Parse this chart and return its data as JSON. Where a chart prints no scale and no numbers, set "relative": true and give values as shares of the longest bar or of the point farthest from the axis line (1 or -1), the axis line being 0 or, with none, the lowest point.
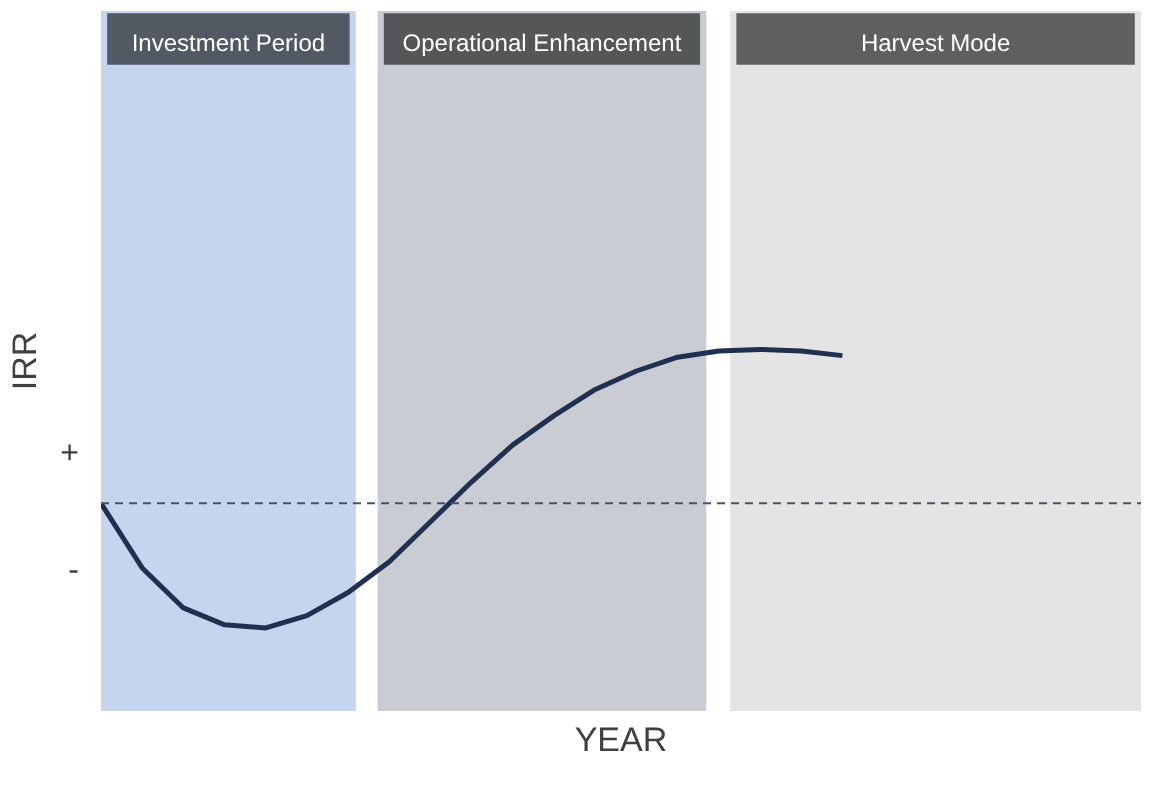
{
  "chart_data": {
    "type": "line",
    "relative": true,
    "xlabel": "YEAR",
    "ylabel": "IRR",
    "categories": [
      null,
      null,
      null,
      null,
      null,
      null,
      null,
      null,
      null,
      null,
      null,
      null,
      null,
      null,
      null,
      null,
      null,
      null,
      null,
      null,
      null,
      null,
      null,
      null,
      null,
      null
    ],
    "series": [
      {
        "color": "#1f3050",
        "values": [
          0,
          -0.42,
          -0.68,
          -0.79,
          -0.81,
          -0.73,
          -0.58,
          -0.38,
          -0.12,
          0.14,
          0.38,
          0.57,
          0.74,
          0.86,
          0.95,
          0.99,
          1,
          0.99,
          0.96,
          null,
          null,
          null,
          null,
          null,
          null,
          null
        ]
      }
    ],
    "ref_lines": [
      {
        "axis": "y",
        "value": 0,
        "color": "#44546a",
        "line_style": "dashed"
      }
    ],
    "annotations": [
      "+",
      "-",
      "Investment Period",
      "Operational Enhancement",
      "Harvest Mode"
    ]
  }
}
